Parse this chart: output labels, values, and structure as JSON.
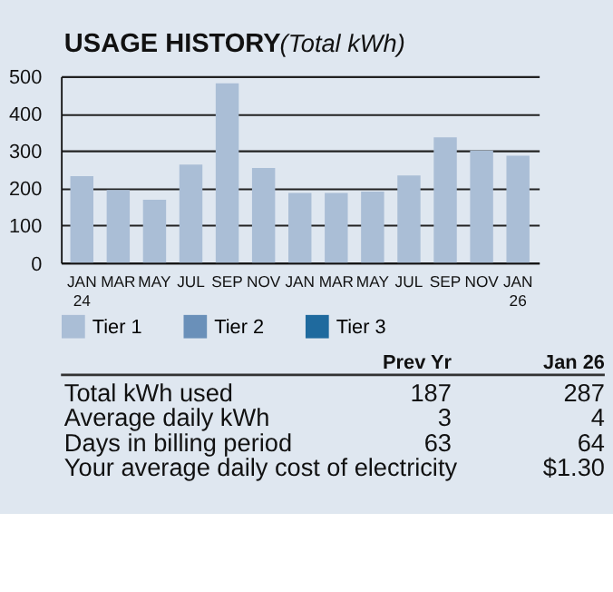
{
  "chart_data": {
    "type": "bar",
    "title": "USAGE HISTORY",
    "subtitle": "(Total kWh)",
    "categories": [
      "JAN 24",
      "MAR",
      "MAY",
      "JUL",
      "SEP",
      "NOV",
      "JAN",
      "MAR",
      "MAY",
      "JUL",
      "SEP",
      "NOV",
      "JAN 26"
    ],
    "series": [
      {
        "name": "Tier 1",
        "color": "#aabed6",
        "values": [
          232,
          195,
          169,
          263,
          481,
          254,
          187,
          187,
          191,
          234,
          336,
          301,
          287
        ]
      },
      {
        "name": "Tier 2",
        "color": "#6a90b9",
        "values": [
          null,
          null,
          null,
          null,
          null,
          null,
          null,
          null,
          null,
          null,
          null,
          null,
          null
        ]
      },
      {
        "name": "Tier 3",
        "color": "#1f6a9e",
        "values": [
          null,
          null,
          null,
          null,
          null,
          null,
          null,
          null,
          null,
          null,
          null,
          null,
          null
        ]
      }
    ],
    "ylim": [
      0,
      500
    ],
    "yticks": [
      0,
      100,
      200,
      300,
      400,
      500
    ],
    "grid": "y",
    "legend": "bottom",
    "annotations": [
      "Prev Yr",
      "Jan 26",
      "Total kWh used",
      "187",
      "287",
      "Average daily kWh",
      "3",
      "4",
      "Days in billing period",
      "63",
      "64",
      "Your average daily cost of electricity",
      "$1.30"
    ]
  }
}
